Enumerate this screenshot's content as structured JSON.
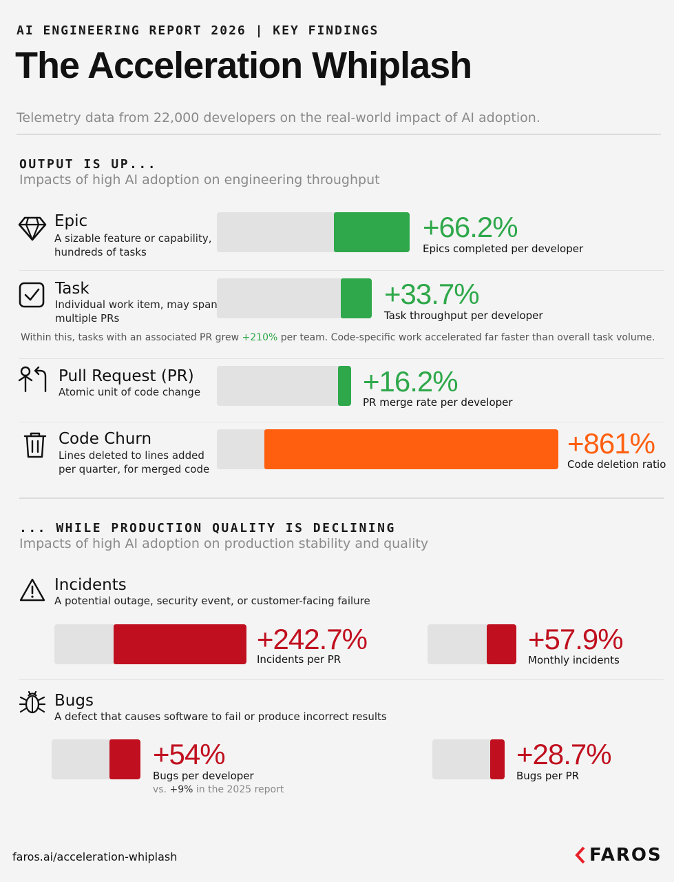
{
  "header": {
    "kicker": "AI ENGINEERING REPORT 2026 | KEY FINDINGS",
    "title": "The Acceleration Whiplash",
    "subtitle": "Telemetry data from 22,000 developers on the real-world impact of AI adoption."
  },
  "output_section": {
    "heading": "OUTPUT IS UP...",
    "subheading": "Impacts of high AI adoption on engineering throughput",
    "note_before": "Within this, tasks with an associated PR grew ",
    "note_highlight": "+210%",
    "note_after": " per team. Code-specific work accelerated far faster than overall task volume."
  },
  "quality_section": {
    "heading": "... WHILE PRODUCTION QUALITY IS DECLINING",
    "subheading": "Impacts of high AI adoption on production stability and quality",
    "incidents": {
      "name": "Incidents",
      "desc": "A potential outage, security event, or customer-facing failure"
    },
    "bugs": {
      "name": "Bugs",
      "desc": "A defect that causes software to fail or produce incorrect results",
      "vs_prefix": "vs. ",
      "vs_value": "+9%",
      "vs_suffix": " in the 2025 report"
    }
  },
  "chart_data": {
    "type": "bar",
    "unit": "percent change",
    "series": [
      {
        "key": "epic",
        "name": "Epic",
        "desc_1": "A sizable feature or capability,",
        "desc_2": "hundreds of tasks",
        "value": 66.2,
        "label": "+66.2%",
        "caption": "Epics completed per developer",
        "color": "#2ea84a",
        "icon": "diamond-icon"
      },
      {
        "key": "task",
        "name": "Task",
        "desc_1": "Individual work item, may span",
        "desc_2": "multiple PRs",
        "value": 33.7,
        "label": "+33.7%",
        "caption": "Task throughput per developer",
        "color": "#2ea84a",
        "icon": "checkbox-icon"
      },
      {
        "key": "pr",
        "name": "Pull Request (PR)",
        "desc_1": "Atomic unit of code change",
        "desc_2": "",
        "value": 16.2,
        "label": "+16.2%",
        "caption": "PR merge rate per developer",
        "color": "#2ea84a",
        "icon": "pull-request-icon"
      },
      {
        "key": "churn",
        "name": "Code Churn",
        "desc_1": "Lines deleted to lines added",
        "desc_2": "per quarter, for merged code",
        "value": 861,
        "label": "+861%",
        "caption": "Code deletion ratio",
        "color": "#ff5f0f",
        "icon": "trash-icon"
      },
      {
        "key": "inc_pr",
        "name": "Incidents per PR",
        "value": 242.7,
        "label": "+242.7%",
        "caption": "Incidents per PR",
        "color": "#c0101f",
        "icon": "warning-icon"
      },
      {
        "key": "inc_month",
        "name": "Monthly incidents",
        "value": 57.9,
        "label": "+57.9%",
        "caption": "Monthly incidents",
        "color": "#c0101f",
        "icon": "warning-icon"
      },
      {
        "key": "bugs_dev",
        "name": "Bugs per developer",
        "value": 54,
        "label": "+54%",
        "caption": "Bugs per developer",
        "color": "#c0101f",
        "icon": "bug-icon"
      },
      {
        "key": "bugs_pr",
        "name": "Bugs per PR",
        "value": 28.7,
        "label": "+28.7%",
        "caption": "Bugs per PR",
        "color": "#c0101f",
        "icon": "bug-icon"
      }
    ]
  },
  "footer": {
    "url": "faros.ai/acceleration-whiplash",
    "logo_text": "FAROS"
  }
}
